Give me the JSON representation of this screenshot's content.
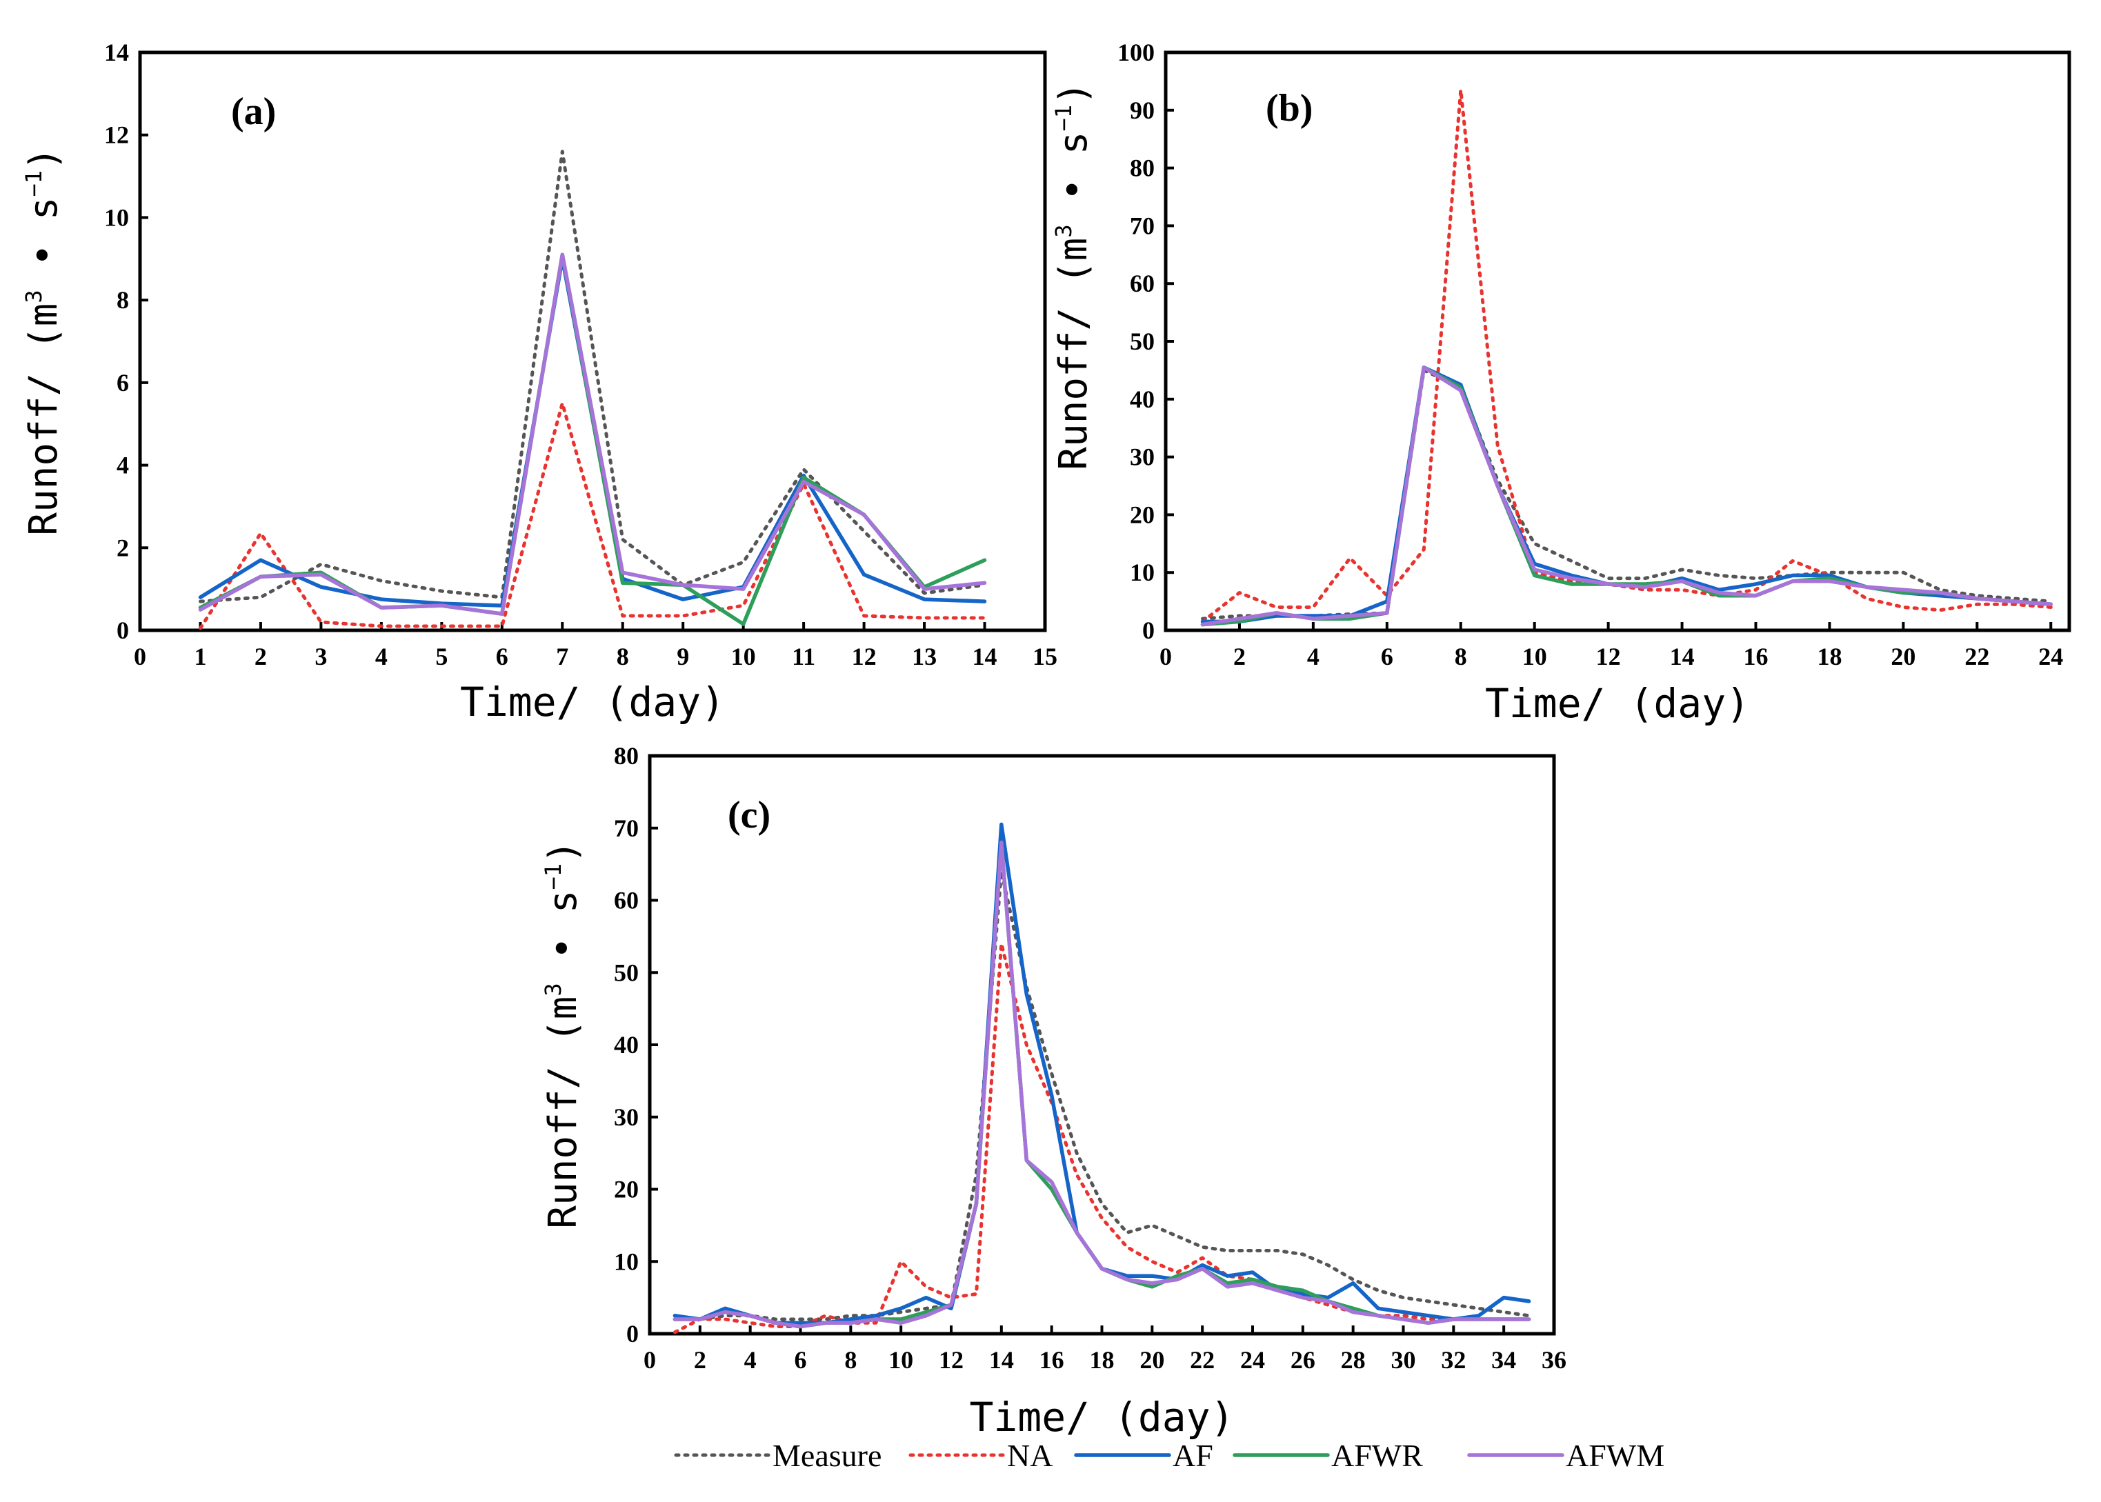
{
  "colors": {
    "Measure": "#555555",
    "NA": "#e8332f",
    "AF": "#1565c8",
    "AFWR": "#2e9e5b",
    "AFWM": "#a674d8"
  },
  "legend": [
    "Measure",
    "NA",
    "AF",
    "AFWR",
    "AFWM"
  ],
  "chart_data": [
    {
      "type": "line",
      "panel_label": "(a)",
      "xlabel": "Time/ (day)",
      "ylabel": "Runoff/ (m",
      "ylabel_sup1": "3",
      "ylabel_mid": " • s",
      "ylabel_sup2": "−1",
      "ylabel_end": ")",
      "xlim": [
        0,
        15
      ],
      "ylim": [
        0,
        14
      ],
      "xticks": [
        0,
        1,
        2,
        3,
        4,
        5,
        6,
        7,
        8,
        9,
        10,
        11,
        12,
        13,
        14,
        15
      ],
      "yticks": [
        0,
        2,
        4,
        6,
        8,
        10,
        12,
        14
      ],
      "x": [
        1,
        2,
        3,
        4,
        5,
        6,
        7,
        8,
        9,
        10,
        11,
        12,
        13,
        14
      ],
      "series": [
        {
          "name": "Measure",
          "values": [
            0.7,
            0.8,
            1.6,
            1.2,
            0.95,
            0.8,
            11.6,
            2.2,
            1.1,
            1.65,
            3.9,
            2.4,
            0.9,
            1.1
          ]
        },
        {
          "name": "NA",
          "values": [
            0.05,
            2.35,
            0.2,
            0.1,
            0.1,
            0.1,
            5.5,
            0.35,
            0.35,
            0.6,
            3.55,
            0.35,
            0.3,
            0.3
          ]
        },
        {
          "name": "AF",
          "values": [
            0.8,
            1.7,
            1.05,
            0.75,
            0.65,
            0.6,
            9.0,
            1.25,
            0.75,
            1.05,
            3.75,
            1.35,
            0.75,
            0.7
          ]
        },
        {
          "name": "AFWR",
          "values": [
            0.55,
            1.3,
            1.4,
            0.55,
            0.6,
            0.4,
            9.1,
            1.15,
            1.1,
            0.15,
            3.7,
            2.8,
            1.05,
            1.7
          ]
        },
        {
          "name": "AFWM",
          "values": [
            0.5,
            1.3,
            1.35,
            0.55,
            0.6,
            0.4,
            9.1,
            1.4,
            1.1,
            1.0,
            3.6,
            2.8,
            1.0,
            1.15
          ]
        }
      ]
    },
    {
      "type": "line",
      "panel_label": "(b)",
      "xlabel": "Time/ (day)",
      "ylabel": "Runoff/ (m",
      "ylabel_sup1": "3",
      "ylabel_mid": " • s",
      "ylabel_sup2": "−1",
      "ylabel_end": ")",
      "xlim": [
        0,
        24.5
      ],
      "ylim": [
        0,
        100
      ],
      "xticks": [
        0,
        2,
        4,
        6,
        8,
        10,
        12,
        14,
        16,
        18,
        20,
        22,
        24
      ],
      "yticks": [
        0,
        10,
        20,
        30,
        40,
        50,
        60,
        70,
        80,
        90,
        100
      ],
      "x": [
        1,
        2,
        3,
        4,
        5,
        6,
        7,
        8,
        9,
        10,
        11,
        12,
        13,
        14,
        15,
        16,
        17,
        18,
        19,
        20,
        21,
        22,
        23,
        24
      ],
      "series": [
        {
          "name": "Measure",
          "values": [
            2,
            2.5,
            2.5,
            2.5,
            2.8,
            3,
            45,
            42,
            26,
            15,
            12,
            9,
            9,
            10.5,
            9.5,
            9,
            9.5,
            10,
            10,
            10,
            7,
            6,
            5.5,
            5
          ]
        },
        {
          "name": "NA",
          "values": [
            1.5,
            6.5,
            4,
            4,
            12.5,
            6,
            14,
            93.5,
            32,
            10,
            8.5,
            8,
            7,
            7,
            6,
            7,
            12,
            9.5,
            5.5,
            4,
            3.5,
            4.5,
            4.5,
            4
          ]
        },
        {
          "name": "AF",
          "values": [
            1.5,
            1.5,
            2.5,
            2.5,
            2.5,
            5,
            45.5,
            42.5,
            25,
            11.5,
            9.5,
            8,
            7.5,
            9,
            7,
            8,
            9.5,
            9.5,
            7.5,
            6.5,
            6,
            5.5,
            5,
            4.5
          ]
        },
        {
          "name": "AFWR",
          "values": [
            1,
            1.5,
            3,
            2,
            2,
            3,
            45.5,
            42,
            25,
            9.5,
            8,
            8,
            8,
            8.5,
            6,
            6,
            8.5,
            9,
            7.5,
            6.5,
            6.5,
            5.5,
            5,
            4.5
          ]
        },
        {
          "name": "AFWM",
          "values": [
            1,
            2,
            3,
            2,
            2.5,
            3,
            45.5,
            41.5,
            25,
            10.5,
            9,
            8,
            7.5,
            8.5,
            6.5,
            6,
            8.5,
            8.5,
            7.5,
            7,
            6.5,
            5.5,
            5,
            4.5
          ]
        }
      ]
    },
    {
      "type": "line",
      "panel_label": "(c)",
      "xlabel": "Time/ (day)",
      "ylabel": "Runoff/ (m",
      "ylabel_sup1": "3",
      "ylabel_mid": " • s",
      "ylabel_sup2": "−1",
      "ylabel_end": ")",
      "xlim": [
        0,
        36
      ],
      "ylim": [
        0,
        80
      ],
      "xticks": [
        0,
        2,
        4,
        6,
        8,
        10,
        12,
        14,
        16,
        18,
        20,
        22,
        24,
        26,
        28,
        30,
        32,
        34,
        36
      ],
      "yticks": [
        0,
        10,
        20,
        30,
        40,
        50,
        60,
        70,
        80
      ],
      "x": [
        1,
        2,
        3,
        4,
        5,
        6,
        7,
        8,
        9,
        10,
        11,
        12,
        13,
        14,
        15,
        16,
        17,
        18,
        19,
        20,
        21,
        22,
        23,
        24,
        25,
        26,
        27,
        28,
        29,
        30,
        31,
        32,
        33,
        34,
        35
      ],
      "series": [
        {
          "name": "Measure",
          "values": [
            2,
            2,
            2.5,
            2.5,
            2,
            2,
            2,
            2.5,
            2.5,
            3,
            3.5,
            4,
            22,
            64,
            48,
            36,
            25,
            18,
            14,
            15,
            13.5,
            12,
            11.5,
            11.5,
            11.5,
            11,
            9.5,
            7.5,
            6,
            5,
            4.5,
            4,
            3.5,
            3,
            2.5
          ]
        },
        {
          "name": "NA",
          "values": [
            0.2,
            2,
            2,
            1.5,
            1,
            1,
            2.5,
            1.5,
            1.5,
            10,
            6.5,
            5,
            5.5,
            54,
            40,
            32,
            22,
            16,
            12,
            10,
            8.5,
            10.5,
            8,
            7.5,
            6,
            5,
            4,
            3,
            2.5,
            2.5,
            2,
            2,
            2,
            2,
            2
          ]
        },
        {
          "name": "AF",
          "values": [
            2.5,
            2,
            3.5,
            2.5,
            1.5,
            1.5,
            1.5,
            2,
            2.5,
            3.5,
            5,
            3.5,
            18,
            70.5,
            47,
            33,
            14,
            9,
            8,
            8,
            7.5,
            9.5,
            8,
            8.5,
            6,
            5.5,
            5,
            7,
            3.5,
            3,
            2.5,
            2,
            2.5,
            5,
            4.5
          ]
        },
        {
          "name": "AFWR",
          "values": [
            2,
            2,
            3,
            2.5,
            1.5,
            1,
            1.5,
            1.5,
            2,
            2,
            3,
            4,
            18,
            68,
            24,
            20,
            14,
            9,
            7.5,
            6.5,
            8,
            9,
            7,
            7.5,
            6.5,
            6,
            4.5,
            3.5,
            2.5,
            2,
            1.5,
            2,
            2,
            2,
            2
          ]
        },
        {
          "name": "AFWM",
          "values": [
            2,
            2,
            3,
            2.5,
            1.5,
            1,
            1.5,
            1.5,
            2,
            1.5,
            2.5,
            4,
            18,
            68,
            24,
            21,
            14,
            9,
            7.5,
            7,
            7.5,
            9,
            6.5,
            7,
            6,
            5,
            4.5,
            3,
            2.5,
            2,
            1.5,
            2,
            2,
            2,
            2
          ]
        }
      ]
    }
  ]
}
